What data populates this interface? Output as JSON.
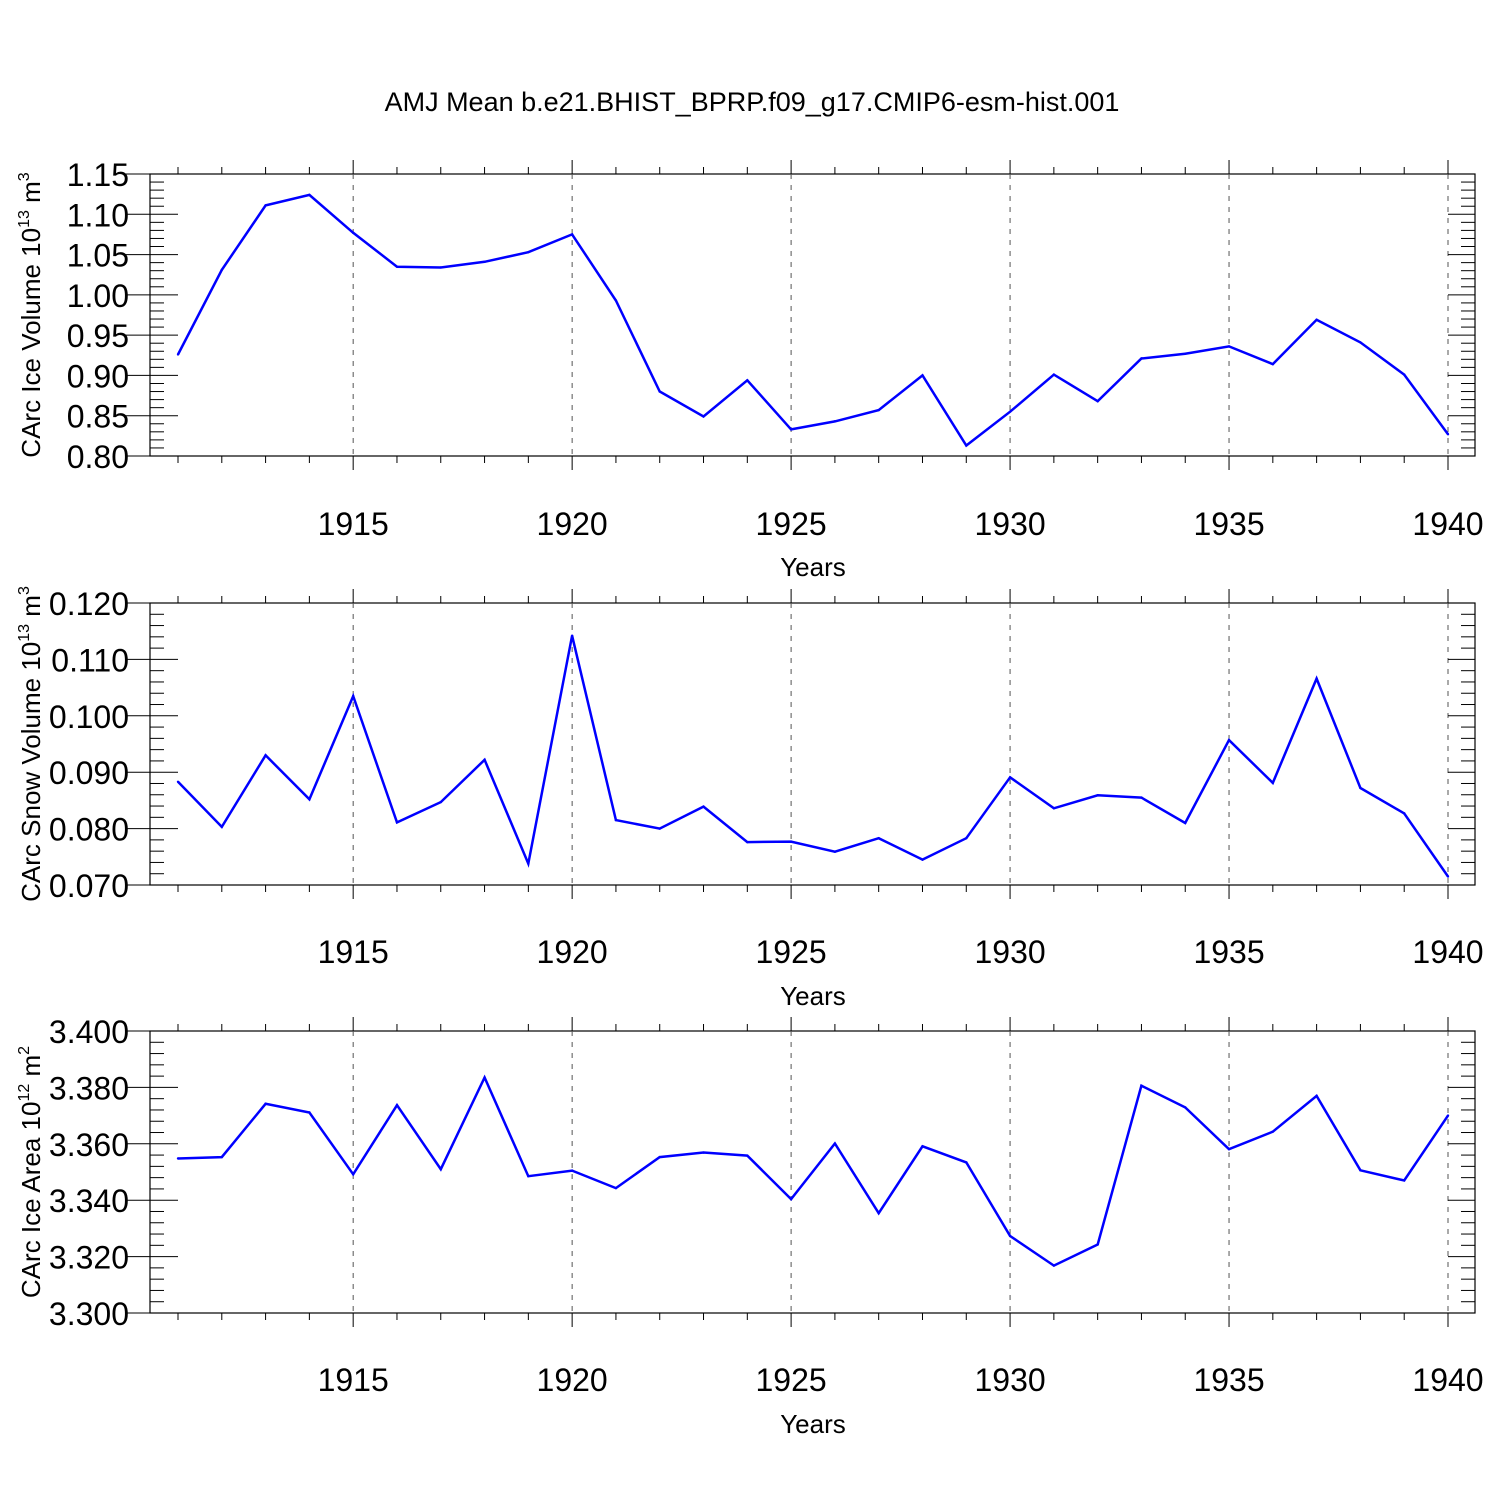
{
  "figure": {
    "title": "AMJ Mean b.e21.BHIST_BPRP.f09_g17.CMIP6-esm-hist.001"
  },
  "colors": {
    "line": "#0000ff",
    "axis": "#000000",
    "grid": "#555555"
  },
  "chart_data": [
    {
      "type": "line",
      "xlabel": "Years",
      "ylabel_main": "CArc Ice Volume 10",
      "ylabel_exp": "13",
      "ylabel_unit": " m",
      "ylabel_unit_exp": "3",
      "xlim": [
        1911,
        1940
      ],
      "ylim": [
        0.8,
        1.15
      ],
      "xticks": [
        "1915",
        "1920",
        "1925",
        "1930",
        "1935",
        "1940"
      ],
      "yticks": [
        "0.80",
        "0.85",
        "0.90",
        "0.95",
        "1.00",
        "1.05",
        "1.10",
        "1.15"
      ],
      "grid": "vertical dashed at major x ticks",
      "x": [
        1911,
        1912,
        1913,
        1914,
        1915,
        1916,
        1917,
        1918,
        1919,
        1920,
        1921,
        1922,
        1923,
        1924,
        1925,
        1926,
        1927,
        1928,
        1929,
        1930,
        1931,
        1932,
        1933,
        1934,
        1935,
        1936,
        1937,
        1938,
        1939,
        1940
      ],
      "values": [
        0.926,
        1.031,
        1.111,
        1.124,
        1.077,
        1.035,
        1.034,
        1.041,
        1.053,
        1.075,
        0.993,
        0.88,
        0.849,
        0.894,
        0.833,
        0.843,
        0.857,
        0.9,
        0.813,
        0.855,
        0.901,
        0.868,
        0.921,
        0.927,
        0.936,
        0.914,
        0.969,
        0.941,
        0.901,
        0.827
      ]
    },
    {
      "type": "line",
      "xlabel": "Years",
      "ylabel_main": "CArc Snow Volume 10",
      "ylabel_exp": "13",
      "ylabel_unit": " m",
      "ylabel_unit_exp": "3",
      "xlim": [
        1911,
        1940
      ],
      "ylim": [
        0.07,
        0.12
      ],
      "xticks": [
        "1915",
        "1920",
        "1925",
        "1930",
        "1935",
        "1940"
      ],
      "yticks": [
        "0.070",
        "0.080",
        "0.090",
        "0.100",
        "0.110",
        "0.120"
      ],
      "grid": "vertical dashed at major x ticks",
      "x": [
        1911,
        1912,
        1913,
        1914,
        1915,
        1916,
        1917,
        1918,
        1919,
        1920,
        1921,
        1922,
        1923,
        1924,
        1925,
        1926,
        1927,
        1928,
        1929,
        1930,
        1931,
        1932,
        1933,
        1934,
        1935,
        1936,
        1937,
        1938,
        1939,
        1940
      ],
      "values": [
        0.0883,
        0.0803,
        0.093,
        0.0852,
        0.1035,
        0.0811,
        0.0847,
        0.0922,
        0.0738,
        0.1142,
        0.0815,
        0.08,
        0.0839,
        0.0776,
        0.0777,
        0.0759,
        0.0783,
        0.0745,
        0.0783,
        0.0891,
        0.0836,
        0.0859,
        0.0855,
        0.081,
        0.0957,
        0.0881,
        0.1066,
        0.0872,
        0.0827,
        0.0715
      ]
    },
    {
      "type": "line",
      "xlabel": "Years",
      "ylabel_main": "CArc Ice Area 10",
      "ylabel_exp": "12",
      "ylabel_unit": " m",
      "ylabel_unit_exp": "2",
      "xlim": [
        1911,
        1940
      ],
      "ylim": [
        3.3,
        3.4
      ],
      "xticks": [
        "1915",
        "1920",
        "1925",
        "1930",
        "1935",
        "1940"
      ],
      "yticks": [
        "3.300",
        "3.320",
        "3.340",
        "3.360",
        "3.380",
        "3.400"
      ],
      "grid": "vertical dashed at major x ticks",
      "x": [
        1911,
        1912,
        1913,
        1914,
        1915,
        1916,
        1917,
        1918,
        1919,
        1920,
        1921,
        1922,
        1923,
        1924,
        1925,
        1926,
        1927,
        1928,
        1929,
        1930,
        1931,
        1932,
        1933,
        1934,
        1935,
        1936,
        1937,
        1938,
        1939,
        1940
      ],
      "values": [
        3.3548,
        3.3553,
        3.3742,
        3.3711,
        3.3492,
        3.3737,
        3.351,
        3.3835,
        3.3485,
        3.3505,
        3.3443,
        3.3553,
        3.3569,
        3.3558,
        3.3404,
        3.3601,
        3.3354,
        3.3591,
        3.3534,
        3.3273,
        3.3168,
        3.3243,
        3.3806,
        3.3729,
        3.3581,
        3.3643,
        3.377,
        3.3506,
        3.347,
        3.37
      ]
    }
  ]
}
